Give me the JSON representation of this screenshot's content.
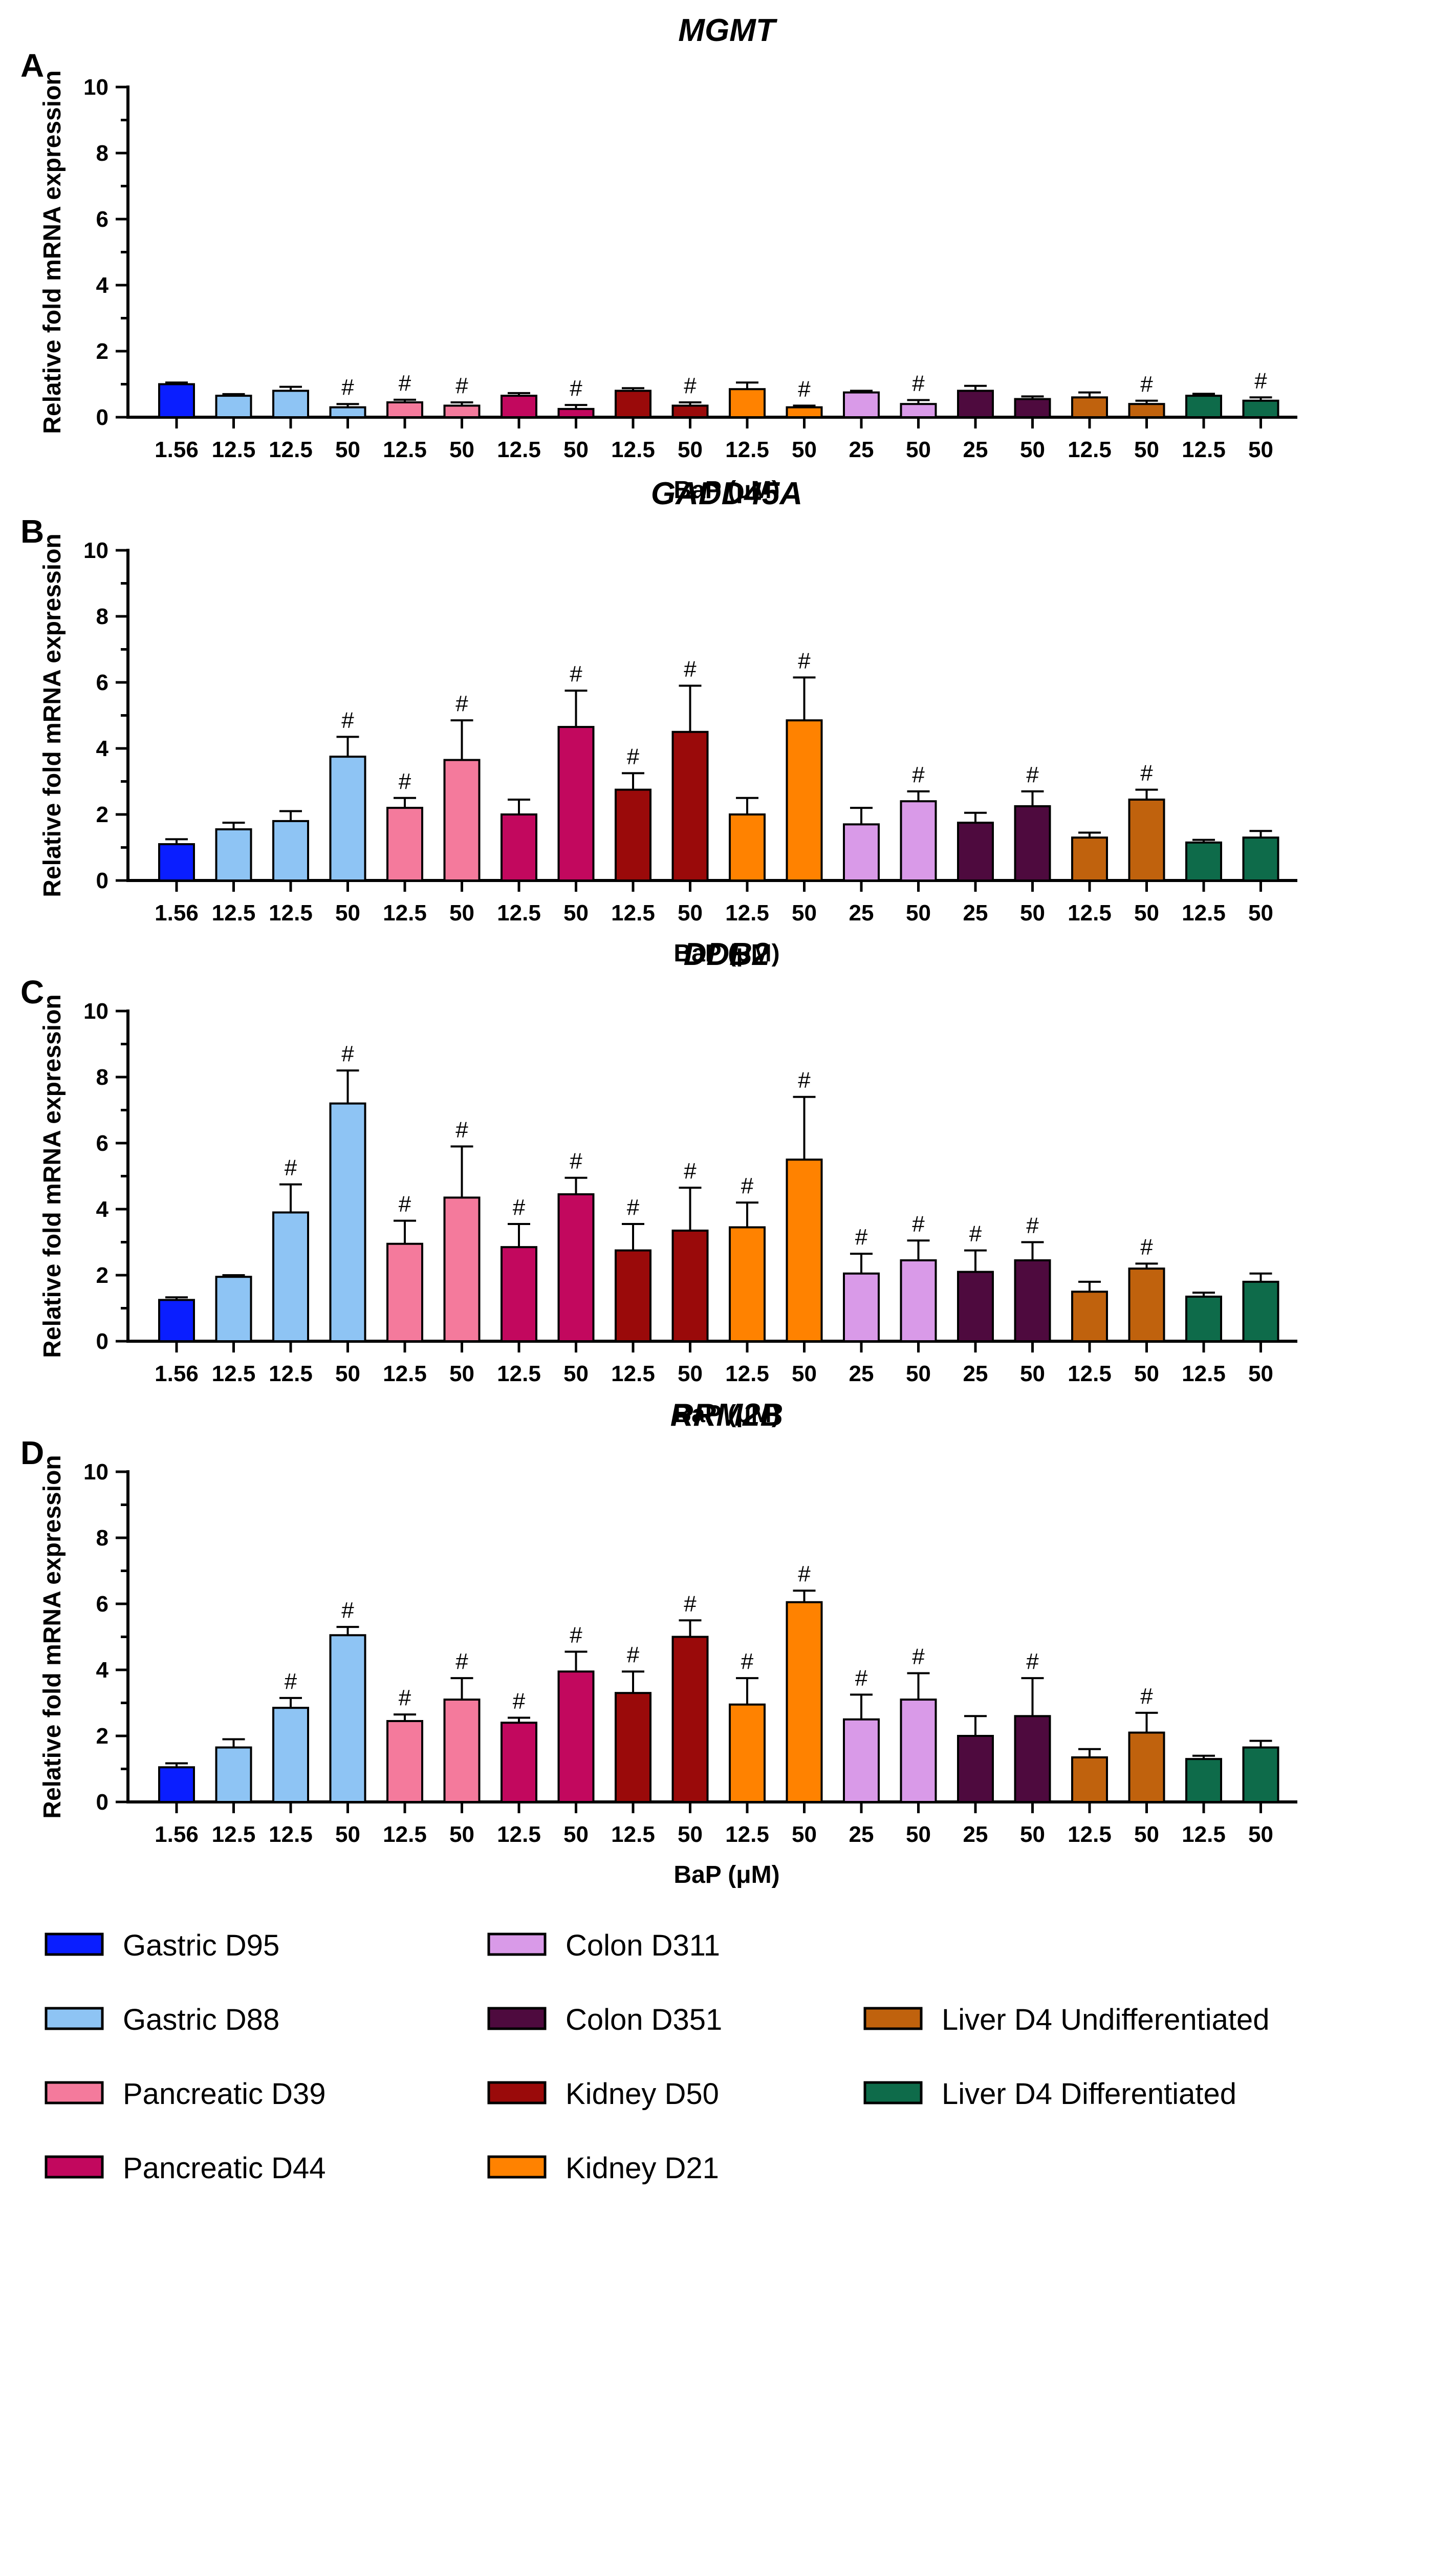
{
  "chart_data": [
    {
      "type": "bar",
      "panel": "A",
      "title": "MGMT",
      "ylabel": "Relative fold mRNA expression",
      "xlabel": "BaP (μM)",
      "ylim": [
        0,
        10
      ],
      "yticks": [
        0,
        2,
        4,
        6,
        8,
        10
      ],
      "categories": [
        "1.56",
        "12.5",
        "12.5",
        "50",
        "12.5",
        "50",
        "12.5",
        "50",
        "12.5",
        "50",
        "12.5",
        "50",
        "25",
        "50",
        "25",
        "50",
        "12.5",
        "50",
        "12.5",
        "50"
      ],
      "values": [
        1.0,
        0.65,
        0.8,
        0.3,
        0.45,
        0.35,
        0.65,
        0.25,
        0.8,
        0.35,
        0.85,
        0.3,
        0.75,
        0.4,
        0.8,
        0.55,
        0.6,
        0.4,
        0.65,
        0.5
      ],
      "errors": [
        0.05,
        0.05,
        0.12,
        0.1,
        0.08,
        0.1,
        0.08,
        0.12,
        0.08,
        0.1,
        0.2,
        0.05,
        0.05,
        0.12,
        0.15,
        0.08,
        0.15,
        0.1,
        0.06,
        0.1
      ],
      "significant": [
        false,
        false,
        false,
        true,
        true,
        true,
        false,
        true,
        false,
        true,
        false,
        true,
        false,
        true,
        false,
        false,
        false,
        true,
        false,
        true
      ]
    },
    {
      "type": "bar",
      "panel": "B",
      "title": "GADD45A",
      "ylabel": "Relative fold mRNA expression",
      "xlabel": "BaP (μM)",
      "ylim": [
        0,
        10
      ],
      "yticks": [
        0,
        2,
        4,
        6,
        8,
        10
      ],
      "categories": [
        "1.56",
        "12.5",
        "12.5",
        "50",
        "12.5",
        "50",
        "12.5",
        "50",
        "12.5",
        "50",
        "12.5",
        "50",
        "25",
        "50",
        "25",
        "50",
        "12.5",
        "50",
        "12.5",
        "50"
      ],
      "values": [
        1.1,
        1.55,
        1.8,
        3.75,
        2.2,
        3.65,
        2.0,
        4.65,
        2.75,
        4.5,
        2.0,
        4.85,
        1.7,
        2.4,
        1.75,
        2.25,
        1.3,
        2.45,
        1.15,
        1.3
      ],
      "errors": [
        0.15,
        0.2,
        0.3,
        0.6,
        0.3,
        1.2,
        0.45,
        1.1,
        0.5,
        1.4,
        0.5,
        1.3,
        0.5,
        0.3,
        0.3,
        0.45,
        0.15,
        0.3,
        0.08,
        0.2
      ],
      "significant": [
        false,
        false,
        false,
        true,
        true,
        true,
        false,
        true,
        true,
        true,
        false,
        true,
        false,
        true,
        false,
        true,
        false,
        true,
        false,
        false
      ]
    },
    {
      "type": "bar",
      "panel": "C",
      "title": "DDB2",
      "ylabel": "Relative fold mRNA expression",
      "xlabel": "BaP (μM)",
      "ylim": [
        0,
        10
      ],
      "yticks": [
        0,
        2,
        4,
        6,
        8,
        10
      ],
      "categories": [
        "1.56",
        "12.5",
        "12.5",
        "50",
        "12.5",
        "50",
        "12.5",
        "50",
        "12.5",
        "50",
        "12.5",
        "50",
        "25",
        "50",
        "25",
        "50",
        "12.5",
        "50",
        "12.5",
        "50"
      ],
      "values": [
        1.25,
        1.95,
        3.9,
        7.2,
        2.95,
        4.35,
        2.85,
        4.45,
        2.75,
        3.35,
        3.45,
        5.5,
        2.05,
        2.45,
        2.1,
        2.45,
        1.5,
        2.2,
        1.35,
        1.8
      ],
      "errors": [
        0.08,
        0.05,
        0.85,
        1.0,
        0.7,
        1.55,
        0.7,
        0.5,
        0.8,
        1.3,
        0.75,
        1.9,
        0.6,
        0.6,
        0.65,
        0.55,
        0.3,
        0.15,
        0.12,
        0.25
      ],
      "significant": [
        false,
        false,
        true,
        true,
        true,
        true,
        true,
        true,
        true,
        true,
        true,
        true,
        true,
        true,
        true,
        true,
        false,
        true,
        false,
        false
      ]
    },
    {
      "type": "bar",
      "panel": "D",
      "title": "RRM2B",
      "ylabel": "Relative fold mRNA expression",
      "xlabel": "BaP (μM)",
      "ylim": [
        0,
        10
      ],
      "yticks": [
        0,
        2,
        4,
        6,
        8,
        10
      ],
      "categories": [
        "1.56",
        "12.5",
        "12.5",
        "50",
        "12.5",
        "50",
        "12.5",
        "50",
        "12.5",
        "50",
        "12.5",
        "50",
        "25",
        "50",
        "25",
        "50",
        "12.5",
        "50",
        "12.5",
        "50"
      ],
      "values": [
        1.05,
        1.65,
        2.85,
        5.05,
        2.45,
        3.1,
        2.4,
        3.95,
        3.3,
        5.0,
        2.95,
        6.05,
        2.5,
        3.1,
        2.0,
        2.6,
        1.35,
        2.1,
        1.3,
        1.65
      ],
      "errors": [
        0.12,
        0.25,
        0.3,
        0.25,
        0.2,
        0.65,
        0.15,
        0.6,
        0.65,
        0.5,
        0.8,
        0.35,
        0.75,
        0.8,
        0.6,
        1.15,
        0.25,
        0.6,
        0.1,
        0.2
      ],
      "significant": [
        false,
        false,
        true,
        true,
        true,
        true,
        true,
        true,
        true,
        true,
        true,
        true,
        true,
        true,
        false,
        true,
        false,
        true,
        false,
        false
      ]
    }
  ],
  "groups": [
    {
      "name": "Gastric D95",
      "color": "#0a1eff",
      "bars": [
        0
      ]
    },
    {
      "name": "Gastric D88",
      "color": "#8ec4f4",
      "bars": [
        1,
        2,
        3
      ]
    },
    {
      "name": "Pancreatic D39",
      "color": "#f47a9c",
      "bars": [
        4,
        5
      ]
    },
    {
      "name": "Pancreatic D44",
      "color": "#c2085e",
      "bars": [
        6,
        7
      ]
    },
    {
      "name": "Kidney D50",
      "color": "#9a0a0a",
      "bars": [
        8,
        9
      ]
    },
    {
      "name": "Kidney D21",
      "color": "#ff8200",
      "bars": [
        10,
        11
      ]
    },
    {
      "name": "Colon D311",
      "color": "#d99ae8",
      "bars": [
        12,
        13
      ]
    },
    {
      "name": "Colon D351",
      "color": "#4e0a3e",
      "bars": [
        14,
        15
      ]
    },
    {
      "name": "Liver D4 Undifferentiated",
      "color": "#c0620d",
      "bars": [
        16,
        17
      ]
    },
    {
      "name": "Liver D4 Differentiated",
      "color": "#0e6b4a",
      "bars": [
        18,
        19
      ]
    }
  ],
  "significance_marker": "#",
  "legend": {
    "placement": "bottom",
    "columns": [
      [
        "Gastric D95",
        "Gastric D88",
        "Pancreatic D39",
        "Pancreatic D44"
      ],
      [
        "Colon D311",
        "Colon D351",
        "Kidney D50",
        "Kidney D21"
      ],
      [
        "Liver D4 Undifferentiated",
        "Liver D4 Differentiated"
      ]
    ]
  }
}
